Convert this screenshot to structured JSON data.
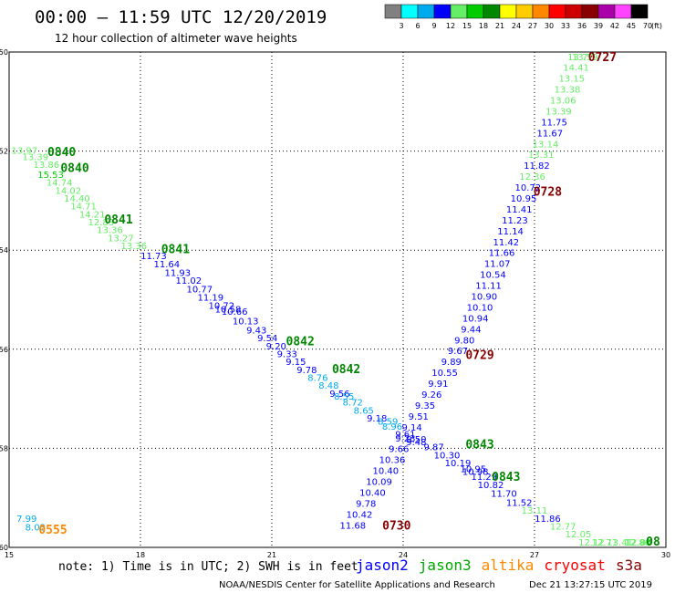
{
  "header": {
    "title": "00:00 – 11:59 UTC 12/20/2019",
    "subtitle": "12 hour collection of altimeter wave heights"
  },
  "colorbar": {
    "unit": "(ft)",
    "bins": [
      {
        "label": "3",
        "color": "#808080"
      },
      {
        "label": "6",
        "color": "#00ffff"
      },
      {
        "label": "9",
        "color": "#00aaee"
      },
      {
        "label": "12",
        "color": "#0000ff"
      },
      {
        "label": "15",
        "color": "#66ee66"
      },
      {
        "label": "18",
        "color": "#00cc00"
      },
      {
        "label": "21",
        "color": "#008800"
      },
      {
        "label": "24",
        "color": "#ffff00"
      },
      {
        "label": "27",
        "color": "#ffcc00"
      },
      {
        "label": "30",
        "color": "#ff8800"
      },
      {
        "label": "33",
        "color": "#ff0000"
      },
      {
        "label": "36",
        "color": "#cc0000"
      },
      {
        "label": "39",
        "color": "#880000"
      },
      {
        "label": "42",
        "color": "#aa00aa"
      },
      {
        "label": "45",
        "color": "#ff44ff"
      },
      {
        "label": "70",
        "color": "#000000"
      }
    ]
  },
  "chart_data": {
    "type": "scatter",
    "xlim": [
      15,
      30
    ],
    "ylim": [
      -60,
      -50
    ],
    "xticks": [
      "15",
      "18",
      "21",
      "24",
      "27",
      "30"
    ],
    "yticks": [
      "-50",
      "-52",
      "-54",
      "-56",
      "-58",
      "-60"
    ],
    "grid": true,
    "tracks": [
      {
        "name": "track-a",
        "points": [
          {
            "x": 15.35,
            "y": -52.05,
            "v": "13.97",
            "c": "#66ee66"
          },
          {
            "x": 15.6,
            "y": -52.18,
            "v": "13.39",
            "c": "#66ee66"
          },
          {
            "x": 15.85,
            "y": -52.34,
            "v": "13.86",
            "c": "#66ee66"
          },
          {
            "x": 15.95,
            "y": -52.54,
            "v": "15.53",
            "c": "#00cc00"
          },
          {
            "x": 16.15,
            "y": -52.7,
            "v": "14.74",
            "c": "#66ee66"
          },
          {
            "x": 16.35,
            "y": -52.86,
            "v": "14.02",
            "c": "#66ee66"
          },
          {
            "x": 16.55,
            "y": -53.02,
            "v": "14.40",
            "c": "#66ee66"
          },
          {
            "x": 16.7,
            "y": -53.18,
            "v": "14.71",
            "c": "#66ee66"
          },
          {
            "x": 16.9,
            "y": -53.34,
            "v": "14.21",
            "c": "#66ee66"
          },
          {
            "x": 17.1,
            "y": -53.5,
            "v": "12.83",
            "c": "#66ee66"
          },
          {
            "x": 17.3,
            "y": -53.66,
            "v": "13.36",
            "c": "#66ee66"
          },
          {
            "x": 17.55,
            "y": -53.82,
            "v": "13.27",
            "c": "#66ee66"
          },
          {
            "x": 17.85,
            "y": -53.98,
            "v": "13.36",
            "c": "#66ee66"
          },
          {
            "x": 18.3,
            "y": -54.18,
            "v": "11.73",
            "c": "#0000ff"
          },
          {
            "x": 18.6,
            "y": -54.35,
            "v": "11.64",
            "c": "#0000ff"
          },
          {
            "x": 18.85,
            "y": -54.52,
            "v": "11.93",
            "c": "#0000ff"
          },
          {
            "x": 19.1,
            "y": -54.68,
            "v": "11.02",
            "c": "#0000ff"
          },
          {
            "x": 19.35,
            "y": -54.85,
            "v": "10.77",
            "c": "#0000ff"
          },
          {
            "x": 19.6,
            "y": -55.02,
            "v": "11.19",
            "c": "#0000ff"
          },
          {
            "x": 19.85,
            "y": -55.18,
            "v": "10.72",
            "c": "#0000ff"
          },
          {
            "x": 20.0,
            "y": -55.26,
            "v": "10.58",
            "c": "#0000ff"
          },
          {
            "x": 20.15,
            "y": -55.3,
            "v": "10.66",
            "c": "#0000ff"
          },
          {
            "x": 20.4,
            "y": -55.5,
            "v": "10.13",
            "c": "#0000ff"
          },
          {
            "x": 20.65,
            "y": -55.68,
            "v": "9.43",
            "c": "#0000ff"
          },
          {
            "x": 20.9,
            "y": -55.84,
            "v": "9.54",
            "c": "#0000ff"
          },
          {
            "x": 21.1,
            "y": -56.0,
            "v": "9.20",
            "c": "#0000ff"
          },
          {
            "x": 21.35,
            "y": -56.16,
            "v": "9.33",
            "c": "#0000ff"
          },
          {
            "x": 21.55,
            "y": -56.32,
            "v": "9.15",
            "c": "#0000ff"
          },
          {
            "x": 21.8,
            "y": -56.48,
            "v": "9.78",
            "c": "#0000ff"
          },
          {
            "x": 22.05,
            "y": -56.64,
            "v": "8.76",
            "c": "#00aaee"
          },
          {
            "x": 22.3,
            "y": -56.8,
            "v": "8.48",
            "c": "#00aaee"
          },
          {
            "x": 22.55,
            "y": -56.96,
            "v": "9.56",
            "c": "#0000ff"
          },
          {
            "x": 22.65,
            "y": -57.02,
            "v": "8.55",
            "c": "#00aaee"
          },
          {
            "x": 22.85,
            "y": -57.14,
            "v": "8.72",
            "c": "#00aaee"
          },
          {
            "x": 23.1,
            "y": -57.3,
            "v": "8.65",
            "c": "#00aaee"
          },
          {
            "x": 23.4,
            "y": -57.46,
            "v": "9.18",
            "c": "#0000ff"
          },
          {
            "x": 23.65,
            "y": -57.52,
            "v": "8.59",
            "c": "#00aaee"
          },
          {
            "x": 23.75,
            "y": -57.62,
            "v": "8.96",
            "c": "#00aaee"
          },
          {
            "x": 24.05,
            "y": -57.78,
            "v": "9.61",
            "c": "#0000ff"
          },
          {
            "x": 24.3,
            "y": -57.88,
            "v": "9.50",
            "c": "#0000ff"
          },
          {
            "x": 24.3,
            "y": -57.94,
            "v": "9.48",
            "c": "#0000ff"
          },
          {
            "x": 24.7,
            "y": -58.04,
            "v": "9.87",
            "c": "#0000ff"
          },
          {
            "x": 25.0,
            "y": -58.2,
            "v": "10.30",
            "c": "#0000ff"
          },
          {
            "x": 25.25,
            "y": -58.36,
            "v": "10.19",
            "c": "#0000ff"
          },
          {
            "x": 25.6,
            "y": -58.48,
            "v": "10.95",
            "c": "#0000ff"
          },
          {
            "x": 25.65,
            "y": -58.54,
            "v": "10.98",
            "c": "#0000ff"
          },
          {
            "x": 25.85,
            "y": -58.64,
            "v": "11.29",
            "c": "#0000ff"
          },
          {
            "x": 26.0,
            "y": -58.8,
            "v": "10.82",
            "c": "#0000ff"
          },
          {
            "x": 26.3,
            "y": -58.98,
            "v": "11.70",
            "c": "#0000ff"
          },
          {
            "x": 26.65,
            "y": -59.16,
            "v": "11.52",
            "c": "#0000ff"
          },
          {
            "x": 27.0,
            "y": -59.32,
            "v": "13.11",
            "c": "#66ee66"
          },
          {
            "x": 27.3,
            "y": -59.48,
            "v": "11.86",
            "c": "#0000ff"
          },
          {
            "x": 27.65,
            "y": -59.64,
            "v": "12.77",
            "c": "#66ee66"
          },
          {
            "x": 28.0,
            "y": -59.8,
            "v": "12.05",
            "c": "#66ee66"
          },
          {
            "x": 28.3,
            "y": -59.96,
            "v": "12.12",
            "c": "#66ee66"
          },
          {
            "x": 28.6,
            "y": -60.12,
            "v": "12.71",
            "c": "#66ee66"
          },
          {
            "x": 28.95,
            "y": -60.28,
            "v": "13.41",
            "c": "#66ee66"
          },
          {
            "x": 29.35,
            "y": -60.44,
            "v": "12.86",
            "c": "#66ee66"
          },
          {
            "x": 29.65,
            "y": -60.56,
            "v": "12.88",
            "c": "#66ee66"
          },
          {
            "x": 29.78,
            "y": -60.6,
            "v": "12.96",
            "c": "#66ee66"
          }
        ]
      },
      {
        "name": "track-b",
        "points": [
          {
            "x": 28.15,
            "y": -49.96,
            "v": "13.59",
            "c": "#66ee66"
          },
          {
            "x": 28.05,
            "y": -50.16,
            "v": "13.77",
            "c": "#66ee66"
          },
          {
            "x": 27.95,
            "y": -50.38,
            "v": "14.41",
            "c": "#66ee66"
          },
          {
            "x": 27.85,
            "y": -50.6,
            "v": "13.15",
            "c": "#66ee66"
          },
          {
            "x": 27.75,
            "y": -50.82,
            "v": "13.38",
            "c": "#66ee66"
          },
          {
            "x": 27.65,
            "y": -51.04,
            "v": "13.06",
            "c": "#66ee66"
          },
          {
            "x": 27.55,
            "y": -51.26,
            "v": "13.39",
            "c": "#66ee66"
          },
          {
            "x": 27.45,
            "y": -51.48,
            "v": "11.75",
            "c": "#0000ff"
          },
          {
            "x": 27.35,
            "y": -51.7,
            "v": "11.67",
            "c": "#0000ff"
          },
          {
            "x": 27.25,
            "y": -51.92,
            "v": "13.14",
            "c": "#66ee66"
          },
          {
            "x": 27.15,
            "y": -52.14,
            "v": "13.31",
            "c": "#66ee66"
          },
          {
            "x": 27.05,
            "y": -52.36,
            "v": "11.82",
            "c": "#0000ff"
          },
          {
            "x": 26.95,
            "y": -52.58,
            "v": "12.36",
            "c": "#66ee66"
          },
          {
            "x": 26.85,
            "y": -52.8,
            "v": "10.72",
            "c": "#0000ff"
          },
          {
            "x": 26.75,
            "y": -53.02,
            "v": "10.95",
            "c": "#0000ff"
          },
          {
            "x": 26.65,
            "y": -53.24,
            "v": "11.41",
            "c": "#0000ff"
          },
          {
            "x": 26.55,
            "y": -53.46,
            "v": "11.23",
            "c": "#0000ff"
          },
          {
            "x": 26.45,
            "y": -53.68,
            "v": "11.14",
            "c": "#0000ff"
          },
          {
            "x": 26.35,
            "y": -53.9,
            "v": "11.42",
            "c": "#0000ff"
          },
          {
            "x": 26.25,
            "y": -54.12,
            "v": "11.66",
            "c": "#0000ff"
          },
          {
            "x": 26.15,
            "y": -54.34,
            "v": "11.07",
            "c": "#0000ff"
          },
          {
            "x": 26.05,
            "y": -54.56,
            "v": "10.54",
            "c": "#0000ff"
          },
          {
            "x": 25.95,
            "y": -54.78,
            "v": "11.11",
            "c": "#0000ff"
          },
          {
            "x": 25.85,
            "y": -55.0,
            "v": "10.90",
            "c": "#0000ff"
          },
          {
            "x": 25.75,
            "y": -55.22,
            "v": "10.10",
            "c": "#0000ff"
          },
          {
            "x": 25.65,
            "y": -55.44,
            "v": "10.94",
            "c": "#0000ff"
          },
          {
            "x": 25.55,
            "y": -55.66,
            "v": "9.44",
            "c": "#0000ff"
          },
          {
            "x": 25.4,
            "y": -55.88,
            "v": "9.80",
            "c": "#0000ff"
          },
          {
            "x": 25.25,
            "y": -56.1,
            "v": "9.67",
            "c": "#0000ff"
          },
          {
            "x": 25.1,
            "y": -56.32,
            "v": "9.89",
            "c": "#0000ff"
          },
          {
            "x": 24.95,
            "y": -56.54,
            "v": "10.55",
            "c": "#0000ff"
          },
          {
            "x": 24.8,
            "y": -56.76,
            "v": "9.91",
            "c": "#0000ff"
          },
          {
            "x": 24.65,
            "y": -56.98,
            "v": "9.26",
            "c": "#0000ff"
          },
          {
            "x": 24.5,
            "y": -57.2,
            "v": "9.35",
            "c": "#0000ff"
          },
          {
            "x": 24.35,
            "y": -57.42,
            "v": "9.51",
            "c": "#0000ff"
          },
          {
            "x": 24.2,
            "y": -57.64,
            "v": "9.14",
            "c": "#0000ff"
          },
          {
            "x": 24.05,
            "y": -57.86,
            "v": "9.23",
            "c": "#0000ff"
          },
          {
            "x": 23.9,
            "y": -58.08,
            "v": "9.66",
            "c": "#0000ff"
          },
          {
            "x": 23.75,
            "y": -58.3,
            "v": "10.36",
            "c": "#0000ff"
          },
          {
            "x": 23.6,
            "y": -58.52,
            "v": "10.40",
            "c": "#0000ff"
          },
          {
            "x": 23.45,
            "y": -58.74,
            "v": "10.09",
            "c": "#0000ff"
          },
          {
            "x": 23.3,
            "y": -58.96,
            "v": "10.40",
            "c": "#0000ff"
          },
          {
            "x": 23.15,
            "y": -59.18,
            "v": "9.78",
            "c": "#0000ff"
          },
          {
            "x": 23.0,
            "y": -59.4,
            "v": "10.42",
            "c": "#0000ff"
          },
          {
            "x": 22.85,
            "y": -59.62,
            "v": "11.68",
            "c": "#0000ff"
          }
        ]
      },
      {
        "name": "track-c",
        "points": [
          {
            "x": 15.4,
            "y": -59.48,
            "v": "7.99",
            "c": "#00aaee"
          },
          {
            "x": 15.6,
            "y": -59.66,
            "v": "8.03",
            "c": "#00aaee"
          }
        ]
      }
    ],
    "time_labels": [
      {
        "x": 16.2,
        "y": -52.1,
        "t": "0840",
        "c": "#008800"
      },
      {
        "x": 16.5,
        "y": -52.42,
        "t": "0840",
        "c": "#008800"
      },
      {
        "x": 17.5,
        "y": -53.46,
        "t": "0841",
        "c": "#008800"
      },
      {
        "x": 18.8,
        "y": -54.06,
        "t": "0841",
        "c": "#008800"
      },
      {
        "x": 21.65,
        "y": -55.92,
        "t": "0842",
        "c": "#008800"
      },
      {
        "x": 22.7,
        "y": -56.48,
        "t": "0842",
        "c": "#008800"
      },
      {
        "x": 25.75,
        "y": -58.0,
        "t": "0843",
        "c": "#008800"
      },
      {
        "x": 26.35,
        "y": -58.66,
        "t": "0843",
        "c": "#008800"
      },
      {
        "x": 29.75,
        "y": -60.4,
        "t": "08",
        "c": "#008800"
      },
      {
        "x": 28.55,
        "y": -49.96,
        "t": "0727",
        "c": "#880000"
      },
      {
        "x": 27.3,
        "y": -52.9,
        "t": "0728",
        "c": "#880000"
      },
      {
        "x": 25.75,
        "y": -56.2,
        "t": "0729",
        "c": "#880000"
      },
      {
        "x": 23.85,
        "y": -59.64,
        "t": "0730",
        "c": "#880000"
      },
      {
        "x": 16.0,
        "y": -59.72,
        "t": "0555",
        "c": "#ff8800"
      }
    ]
  },
  "footer": {
    "note": "note: 1) Time is in UTC; 2) SWH is in feet",
    "satellites": [
      {
        "name": "jason2",
        "color": "#0000ff"
      },
      {
        "name": "jason3",
        "color": "#00aa00"
      },
      {
        "name": "altika",
        "color": "#ff8800"
      },
      {
        "name": "cryosat",
        "color": "#ff0000"
      },
      {
        "name": "s3a",
        "color": "#880000"
      }
    ],
    "credit": "NOAA/NESDIS Center for Satellite Applications and Research",
    "timestamp": "Dec 21 13:27:15 UTC 2019"
  }
}
